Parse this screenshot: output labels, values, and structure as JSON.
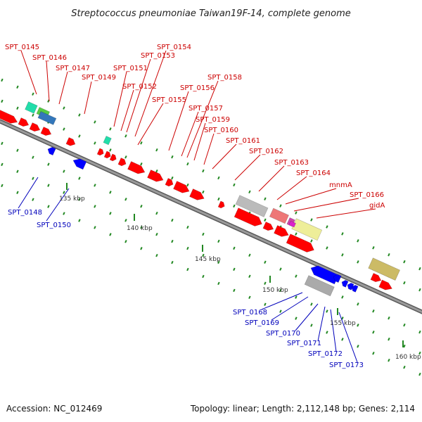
{
  "title": "Streptococcus pneumoniae Taiwan19F-14, complete genome",
  "footer": {
    "accession": "Accession: NC_012469",
    "summary": "Topology: linear; Length: 2,112,148 bp; Genes: 2,114"
  },
  "colors": {
    "forward": "#ff0000",
    "reverse": "#0000ff",
    "forward_label": "#cc0000",
    "reverse_label": "#0000bb",
    "backbone": "#888888",
    "tick": "#228822"
  },
  "scale_marks": [
    "135 kbp",
    "140 kbp",
    "145 kbp",
    "150 kbp",
    "155 kbp",
    "160 kbp"
  ],
  "forward_labels": [
    "SPT_0145",
    "SPT_0146",
    "SPT_0147",
    "SPT_0149",
    "SPT_0151",
    "SPT_0152",
    "SPT_0153",
    "SPT_0154",
    "SPT_0155",
    "SPT_0156",
    "SPT_0157",
    "SPT_0158",
    "SPT_0159",
    "SPT_0160",
    "SPT_0161",
    "SPT_0162",
    "SPT_0163",
    "SPT_0164",
    "mnmA",
    "SPT_0166",
    "gidA"
  ],
  "reverse_labels": [
    "SPT_0148",
    "SPT_0150",
    "SPT_0168",
    "SPT_0169",
    "SPT_0170",
    "SPT_0171",
    "SPT_0172",
    "SPT_0173"
  ]
}
